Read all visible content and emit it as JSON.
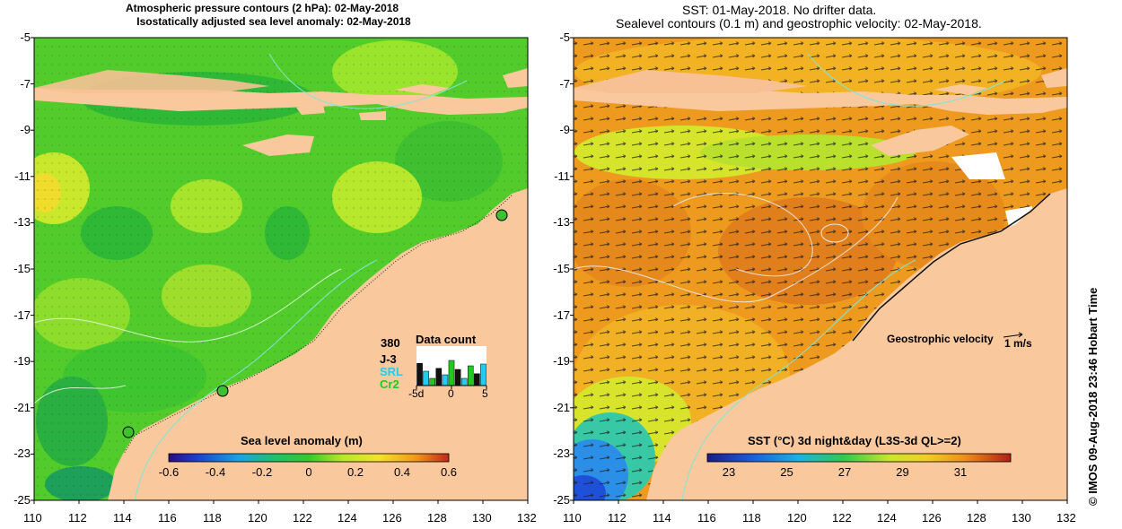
{
  "left_panel": {
    "title_line1": "Atmospheric pressure contours (2 hPa): 02-May-2018",
    "title_line2": "Isostatically adjusted sea level anomaly: 02-May-2018",
    "colorbar_label": "Sea level anomaly (m)",
    "colorbar_ticks": [
      "-0.6",
      "-0.4",
      "-0.2",
      "0",
      "0.2",
      "0.4",
      "0.6"
    ],
    "data_count": {
      "title": "Data count",
      "max_label": "380",
      "sat1": "J-3",
      "sat2": "SRL",
      "sat3": "Cr2",
      "x_ticks": [
        "-5d",
        "0",
        "5"
      ],
      "bars": [
        0.62,
        0.4,
        0.2,
        0.48,
        0.3,
        0.7,
        0.45,
        0.2,
        0.55,
        0.33,
        0.6
      ]
    }
  },
  "right_panel": {
    "title_line1": "SST: 01-May-2018. No drifter data.",
    "title_line2": "Sealevel contours (0.1 m) and geostrophic velocity: 02-May-2018.",
    "velocity_label": "Geostrophic velocity",
    "velocity_scale": "1 m/s",
    "colorbar_label": "SST (°C) 3d night&day (L3S-3d QL>=2)",
    "colorbar_ticks": [
      "23",
      "25",
      "27",
      "29",
      "31"
    ]
  },
  "axes": {
    "x_ticks": [
      "110",
      "112",
      "114",
      "116",
      "118",
      "120",
      "122",
      "124",
      "126",
      "128",
      "130",
      "132"
    ],
    "y_ticks": [
      "-5",
      "-7",
      "-9",
      "-11",
      "-13",
      "-15",
      "-17",
      "-19",
      "-21",
      "-23",
      "-25"
    ],
    "x_range": [
      110,
      132
    ],
    "y_range": [
      -25,
      -5
    ]
  },
  "credit": "© IMOS 09-Aug-2018 23:46 Hobart Time",
  "colors": {
    "land": "#f9c99d",
    "land_islands": "#f4bf93",
    "ocean_green": "#5ed12b",
    "ocean_lime": "#a6ea2a",
    "sst_orange": "#ef9a1c",
    "sst_dark": "#d4661a",
    "sst_yellow": "#d8ea2a"
  }
}
